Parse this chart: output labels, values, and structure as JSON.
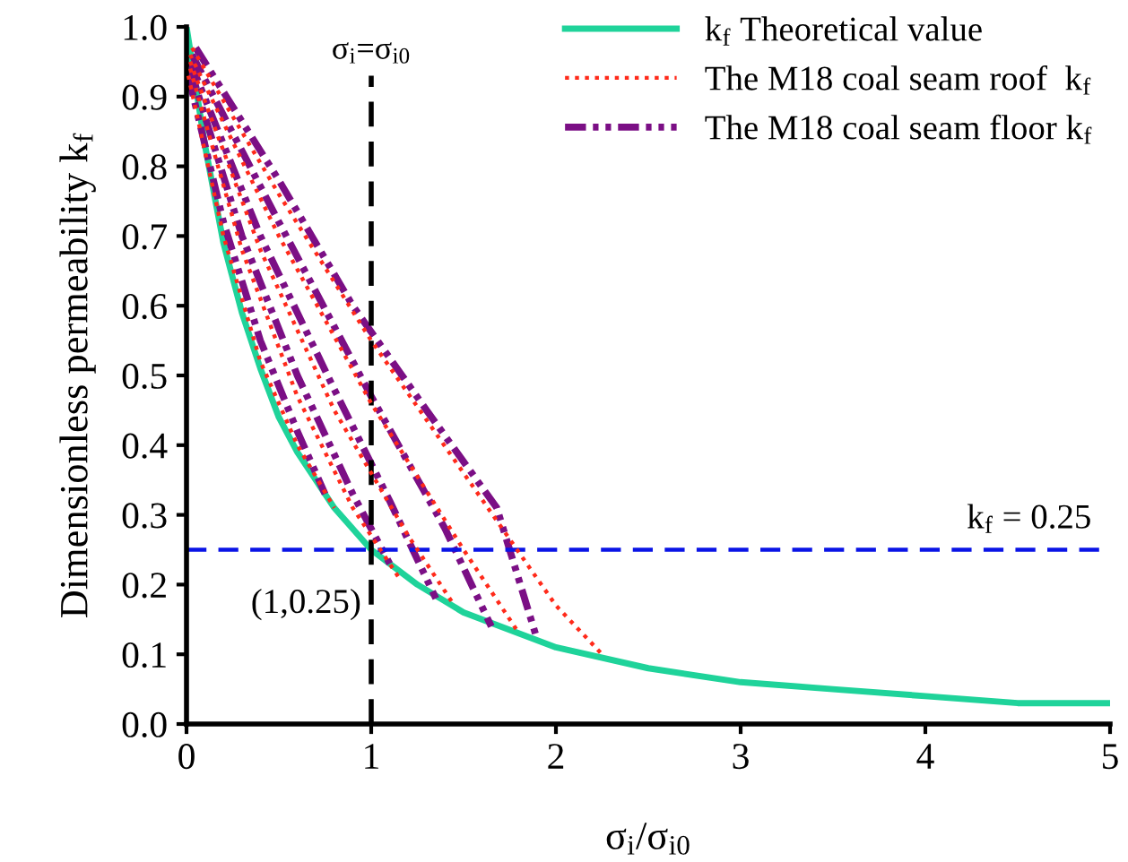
{
  "chart_data": {
    "type": "line",
    "xlabel": "σ$_{i}$/σ$_{i0}$",
    "ylabel": "Dimensionless permeability k$_{f}$",
    "xlim": [
      0,
      5
    ],
    "ylim": [
      0,
      1.0
    ],
    "xticks": [
      0,
      1,
      2,
      3,
      4,
      5
    ],
    "yticks": [
      {
        "value": 0,
        "label": "0.0"
      },
      0.1,
      0.2,
      0.3,
      0.4,
      0.5,
      0.6,
      0.7,
      0.8,
      0.9,
      {
        "value": 1,
        "label": "1.0"
      }
    ],
    "grid": false,
    "legend": "top right",
    "marker": "none",
    "series": [
      {
        "name": "k$_{f}$ Theoretical value",
        "color": "#1fd39a",
        "line_style": "solid",
        "x": [
          0,
          0.1,
          0.2,
          0.3,
          0.4,
          0.5,
          0.6,
          0.8,
          1,
          1.25,
          1.5,
          2,
          2.5,
          3,
          3.5,
          4,
          4.5,
          5
        ],
        "values": [
          1,
          0.83,
          0.69,
          0.59,
          0.51,
          0.44,
          0.39,
          0.31,
          0.25,
          0.2,
          0.16,
          0.11,
          0.08,
          0.06,
          0.05,
          0.04,
          0.03,
          0.03
        ]
      },
      {
        "name": "The M18 coal seam roof  k$_{f}$",
        "color": "#ff2a1a",
        "line_style": "dotted",
        "x": [
          0.03,
          0.5,
          1.0,
          1.5,
          2.0,
          2.25
        ],
        "values": [
          0.97,
          0.76,
          0.55,
          0.36,
          0.17,
          0.1
        ]
      },
      {
        "color": "#ff2a1a",
        "line_style": "dotted",
        "x": [
          0.02,
          0.5,
          1.0,
          1.5,
          1.8
        ],
        "values": [
          0.96,
          0.7,
          0.46,
          0.25,
          0.13
        ]
      },
      {
        "color": "#ff2a1a",
        "line_style": "dotted",
        "x": [
          0.02,
          0.4,
          0.8,
          1.2,
          1.45
        ],
        "values": [
          0.95,
          0.68,
          0.45,
          0.27,
          0.17
        ]
      },
      {
        "color": "#ff2a1a",
        "line_style": "dotted",
        "x": [
          0.02,
          0.3,
          0.6,
          0.9,
          1.15
        ],
        "values": [
          0.94,
          0.68,
          0.47,
          0.31,
          0.21
        ]
      },
      {
        "color": "#ff2a1a",
        "line_style": "dotted",
        "x": [
          0.01,
          0.2,
          0.4,
          0.6,
          0.8
        ],
        "values": [
          0.93,
          0.7,
          0.52,
          0.4,
          0.31
        ]
      },
      {
        "name": "The M18 coal seam floor k$_{f}$",
        "color": "#7b0f85",
        "line_style": "dashdot",
        "x": [
          0.05,
          0.5,
          0.9,
          1.3,
          1.68,
          1.9
        ],
        "values": [
          0.97,
          0.78,
          0.6,
          0.45,
          0.31,
          0.12
        ]
      },
      {
        "color": "#7b0f85",
        "line_style": "dashdot",
        "x": [
          0.03,
          0.5,
          1.0,
          1.4,
          1.65
        ],
        "values": [
          0.96,
          0.72,
          0.47,
          0.28,
          0.14
        ]
      },
      {
        "color": "#7b0f85",
        "line_style": "dashdot",
        "x": [
          0.02,
          0.4,
          0.8,
          1.1,
          1.35
        ],
        "values": [
          0.95,
          0.7,
          0.48,
          0.32,
          0.18
        ]
      },
      {
        "color": "#7b0f85",
        "line_style": "dashdot",
        "x": [
          0.02,
          0.3,
          0.6,
          0.9,
          1.1
        ],
        "values": [
          0.94,
          0.7,
          0.5,
          0.33,
          0.23
        ]
      },
      {
        "color": "#7b0f85",
        "line_style": "dashdot",
        "x": [
          0.01,
          0.2,
          0.4,
          0.6,
          0.75
        ],
        "values": [
          0.93,
          0.72,
          0.55,
          0.42,
          0.33
        ]
      }
    ],
    "ref_lines": [
      {
        "axis": "x",
        "value": 1,
        "label": "σ$_{i}$=σ$_{i0}$",
        "color": "#000000",
        "line_style": "dashed"
      },
      {
        "axis": "y",
        "value": 0.25,
        "label": "k$_{f}$ = 0.25",
        "color": "#0a14e6",
        "line_style": "dashed"
      }
    ],
    "annotations": [
      {
        "text": "(1,0.25)",
        "x": 1,
        "y": 0.25
      }
    ]
  }
}
